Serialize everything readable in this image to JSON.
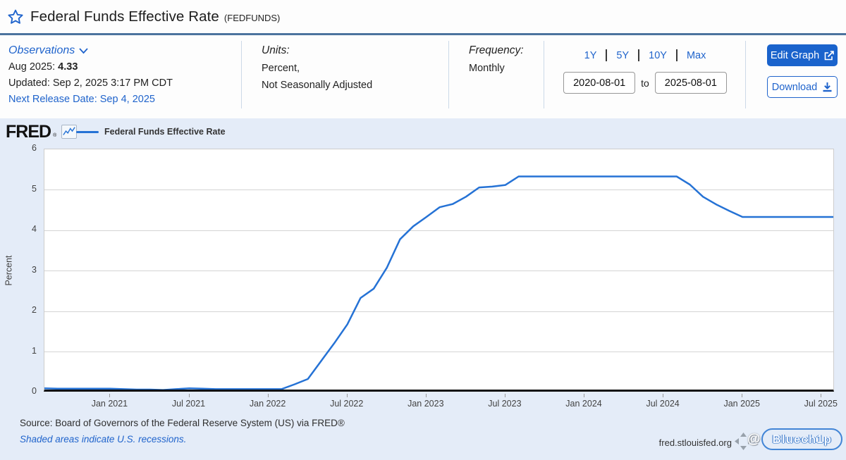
{
  "header": {
    "title": "Federal Funds Effective Rate",
    "ticker": "(FEDFUNDS)"
  },
  "observations": {
    "label": "Observations",
    "latest_label": "Aug 2025:",
    "latest_value": "4.33",
    "updated": "Updated: Sep 2, 2025 3:17 PM CDT",
    "next_release": "Next Release Date: Sep 4, 2025"
  },
  "units": {
    "label": "Units:",
    "line1": "Percent,",
    "line2": "Not Seasonally Adjusted"
  },
  "frequency": {
    "label": "Frequency:",
    "value": "Monthly"
  },
  "range": {
    "presets": [
      "1Y",
      "5Y",
      "10Y",
      "Max"
    ],
    "start": "2020-08-01",
    "to_label": "to",
    "end": "2025-08-01"
  },
  "actions": {
    "edit_graph": "Edit Graph",
    "download": "Download"
  },
  "chart_header": {
    "logo": "FRED",
    "reg": "®",
    "legend": "Federal Funds Effective Rate"
  },
  "footer": {
    "source": "Source: Board of Governors of the Federal Reserve System (US) via FRED®",
    "recessions": "Shaded areas indicate U.S. recessions.",
    "site": "fred.stlouisfed.org",
    "watermark_at": "@",
    "watermark": "Bluech1p"
  },
  "colors": {
    "accent_blue": "#2064cc",
    "line_blue": "#2572d5",
    "header_rule": "#4b739e",
    "module_bg": "#e4ecf8"
  },
  "chart_data": {
    "type": "line",
    "title": "Federal Funds Effective Rate",
    "ylabel": "Percent",
    "ylim": [
      0,
      6
    ],
    "grid": true,
    "legend_position": "top-left",
    "x_range": [
      "2020-08",
      "2025-08"
    ],
    "yticks": [
      "6",
      "5",
      "4",
      "3",
      "2",
      "1",
      "0"
    ],
    "xticks": [
      {
        "label": "Jan 2021",
        "m": 5
      },
      {
        "label": "Jul 2021",
        "m": 11
      },
      {
        "label": "Jan 2022",
        "m": 17
      },
      {
        "label": "Jul 2022",
        "m": 23
      },
      {
        "label": "Jan 2023",
        "m": 29
      },
      {
        "label": "Jul 2023",
        "m": 35
      },
      {
        "label": "Jan 2024",
        "m": 41
      },
      {
        "label": "Jul 2024",
        "m": 47
      },
      {
        "label": "Jan 2025",
        "m": 53
      },
      {
        "label": "Jul 2025",
        "m": 59
      }
    ],
    "x": [
      "2020-08",
      "2020-09",
      "2020-10",
      "2020-11",
      "2020-12",
      "2021-01",
      "2021-02",
      "2021-03",
      "2021-04",
      "2021-05",
      "2021-06",
      "2021-07",
      "2021-08",
      "2021-09",
      "2021-10",
      "2021-11",
      "2021-12",
      "2022-01",
      "2022-02",
      "2022-03",
      "2022-04",
      "2022-05",
      "2022-06",
      "2022-07",
      "2022-08",
      "2022-09",
      "2022-10",
      "2022-11",
      "2022-12",
      "2023-01",
      "2023-02",
      "2023-03",
      "2023-04",
      "2023-05",
      "2023-06",
      "2023-07",
      "2023-08",
      "2023-09",
      "2023-10",
      "2023-11",
      "2023-12",
      "2024-01",
      "2024-02",
      "2024-03",
      "2024-04",
      "2024-05",
      "2024-06",
      "2024-07",
      "2024-08",
      "2024-09",
      "2024-10",
      "2024-11",
      "2024-12",
      "2025-01",
      "2025-02",
      "2025-03",
      "2025-04",
      "2025-05",
      "2025-06",
      "2025-07",
      "2025-08"
    ],
    "values": [
      0.1,
      0.09,
      0.09,
      0.09,
      0.09,
      0.09,
      0.08,
      0.07,
      0.07,
      0.06,
      0.08,
      0.1,
      0.09,
      0.08,
      0.08,
      0.08,
      0.08,
      0.08,
      0.08,
      0.2,
      0.33,
      0.77,
      1.21,
      1.68,
      2.33,
      2.56,
      3.08,
      3.78,
      4.1,
      4.33,
      4.57,
      4.65,
      4.83,
      5.06,
      5.08,
      5.12,
      5.33,
      5.33,
      5.33,
      5.33,
      5.33,
      5.33,
      5.33,
      5.33,
      5.33,
      5.33,
      5.33,
      5.33,
      5.33,
      5.13,
      4.83,
      4.64,
      4.48,
      4.33,
      4.33,
      4.33,
      4.33,
      4.33,
      4.33,
      4.33,
      4.33
    ]
  }
}
